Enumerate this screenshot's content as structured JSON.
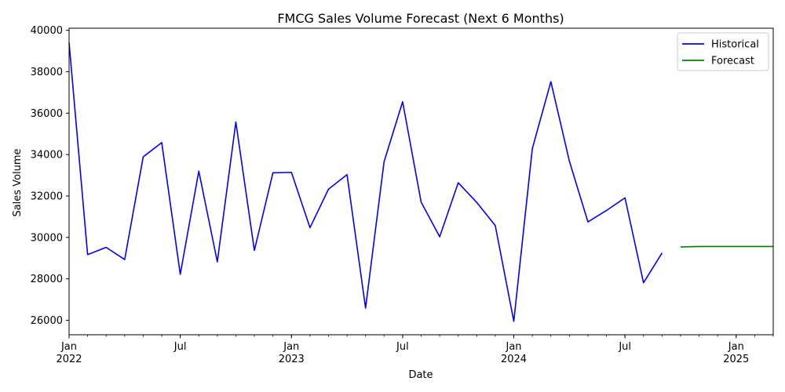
{
  "chart_data": {
    "type": "line",
    "title": "FMCG Sales Volume Forecast (Next 6 Months)",
    "xlabel": "Date",
    "ylabel": "Sales Volume",
    "x_range": [
      "2022-01",
      "2025-03"
    ],
    "ylim": [
      25300,
      40100
    ],
    "y_ticks": [
      26000,
      28000,
      30000,
      32000,
      34000,
      36000,
      38000,
      40000
    ],
    "x_major_ticks": [
      {
        "date": "2022-01",
        "label": "Jan",
        "year": "2022"
      },
      {
        "date": "2022-07",
        "label": "Jul",
        "year": ""
      },
      {
        "date": "2023-01",
        "label": "Jan",
        "year": "2023"
      },
      {
        "date": "2023-07",
        "label": "Jul",
        "year": ""
      },
      {
        "date": "2024-01",
        "label": "Jan",
        "year": "2024"
      },
      {
        "date": "2024-07",
        "label": "Jul",
        "year": ""
      },
      {
        "date": "2025-01",
        "label": "Jan",
        "year": "2025"
      }
    ],
    "legend_position": "top-right",
    "grid": false,
    "series": [
      {
        "name": "Historical",
        "color": "#0000ff",
        "x": [
          "2022-01",
          "2022-02",
          "2022-03",
          "2022-04",
          "2022-05",
          "2022-06",
          "2022-07",
          "2022-08",
          "2022-09",
          "2022-10",
          "2022-11",
          "2022-12",
          "2023-01",
          "2023-02",
          "2023-03",
          "2023-04",
          "2023-05",
          "2023-06",
          "2023-07",
          "2023-08",
          "2023-09",
          "2023-10",
          "2023-11",
          "2023-12",
          "2024-01",
          "2024-02",
          "2024-03",
          "2024-04",
          "2024-05",
          "2024-06",
          "2024-07",
          "2024-08",
          "2024-09"
        ],
        "values": [
          39400,
          29170,
          29520,
          28930,
          33890,
          34580,
          28220,
          33200,
          28820,
          35570,
          29370,
          33120,
          33140,
          30470,
          32330,
          33030,
          26590,
          33660,
          36550,
          31700,
          30030,
          32640,
          31690,
          30570,
          25950,
          34290,
          37520,
          33680,
          30750,
          31300,
          31910,
          27810,
          29250
        ]
      },
      {
        "name": "Forecast",
        "color": "#008000",
        "x": [
          "2024-10",
          "2024-11",
          "2024-12",
          "2025-01",
          "2025-02",
          "2025-03"
        ],
        "values": [
          29540,
          29560,
          29560,
          29560,
          29560,
          29560
        ]
      }
    ]
  }
}
